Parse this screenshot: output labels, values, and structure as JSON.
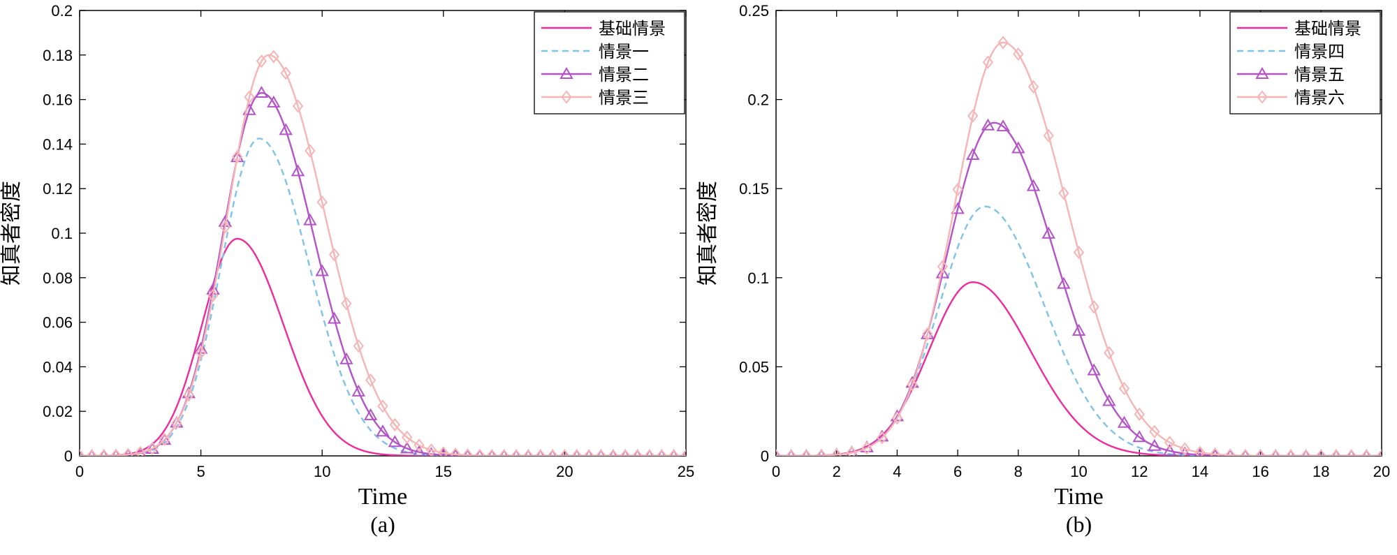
{
  "chart_data": [
    {
      "type": "line",
      "panel_label": "(a)",
      "xlabel": "Time",
      "ylabel": "知真者密度",
      "xlim": [
        0,
        25
      ],
      "ylim": [
        0,
        0.2
      ],
      "xticks": [
        0,
        5,
        10,
        15,
        20,
        25
      ],
      "yticks": [
        0,
        0.02,
        0.04,
        0.06,
        0.08,
        0.1,
        0.12,
        0.14,
        0.16,
        0.18,
        0.2
      ],
      "xtick_labels": [
        "0",
        "5",
        "10",
        "15",
        "20",
        "25"
      ],
      "ytick_labels": [
        "0",
        "0.02",
        "0.04",
        "0.06",
        "0.08",
        "0.1",
        "0.12",
        "0.14",
        "0.16",
        "0.18",
        "0.2"
      ],
      "legend_position": "top-right",
      "series": [
        {
          "name": "基础情景",
          "color": "#ee2b9c",
          "style": "solid",
          "marker": "none",
          "peak_t": 6.5,
          "peak": 0.0975,
          "sigma_left": 1.45,
          "sigma_right": 1.9
        },
        {
          "name": "情景一",
          "color": "#7ec3ea",
          "style": "dashed",
          "marker": "none",
          "peak_t": 7.4,
          "peak": 0.1425,
          "sigma_left": 1.55,
          "sigma_right": 2.05
        },
        {
          "name": "情景二",
          "color": "#b452c8",
          "style": "solid",
          "marker": "triangle",
          "peak_t": 7.5,
          "peak": 0.163,
          "sigma_left": 1.6,
          "sigma_right": 2.15
        },
        {
          "name": "情景三",
          "color": "#f7b4b4",
          "style": "solid",
          "marker": "diamond",
          "peak_t": 7.8,
          "peak": 0.18,
          "sigma_left": 1.7,
          "sigma_right": 2.3
        }
      ]
    },
    {
      "type": "line",
      "panel_label": "(b)",
      "xlabel": "Time",
      "ylabel": "知真者密度",
      "xlim": [
        0,
        20
      ],
      "ylim": [
        0,
        0.25
      ],
      "xticks": [
        0,
        2,
        4,
        6,
        8,
        10,
        12,
        14,
        16,
        18,
        20
      ],
      "yticks": [
        0,
        0.05,
        0.1,
        0.15,
        0.2,
        0.25
      ],
      "xtick_labels": [
        "0",
        "2",
        "4",
        "6",
        "8",
        "10",
        "12",
        "14",
        "16",
        "18",
        "20"
      ],
      "ytick_labels": [
        "0",
        "0.05",
        "0.1",
        "0.15",
        "0.2",
        "0.25"
      ],
      "legend_position": "top-right",
      "series": [
        {
          "name": "基础情景",
          "color": "#ee2b9c",
          "style": "solid",
          "marker": "none",
          "peak_t": 6.5,
          "peak": 0.0975,
          "sigma_left": 1.45,
          "sigma_right": 1.9
        },
        {
          "name": "情景四",
          "color": "#7ec3ea",
          "style": "dashed",
          "marker": "none",
          "peak_t": 6.9,
          "peak": 0.14,
          "sigma_left": 1.5,
          "sigma_right": 1.95
        },
        {
          "name": "情景五",
          "color": "#b452c8",
          "style": "solid",
          "marker": "triangle",
          "peak_t": 7.2,
          "peak": 0.187,
          "sigma_left": 1.55,
          "sigma_right": 2.0
        },
        {
          "name": "情景六",
          "color": "#f7b4b4",
          "style": "solid",
          "marker": "diamond",
          "peak_t": 7.5,
          "peak": 0.232,
          "sigma_left": 1.6,
          "sigma_right": 2.1
        }
      ]
    }
  ]
}
